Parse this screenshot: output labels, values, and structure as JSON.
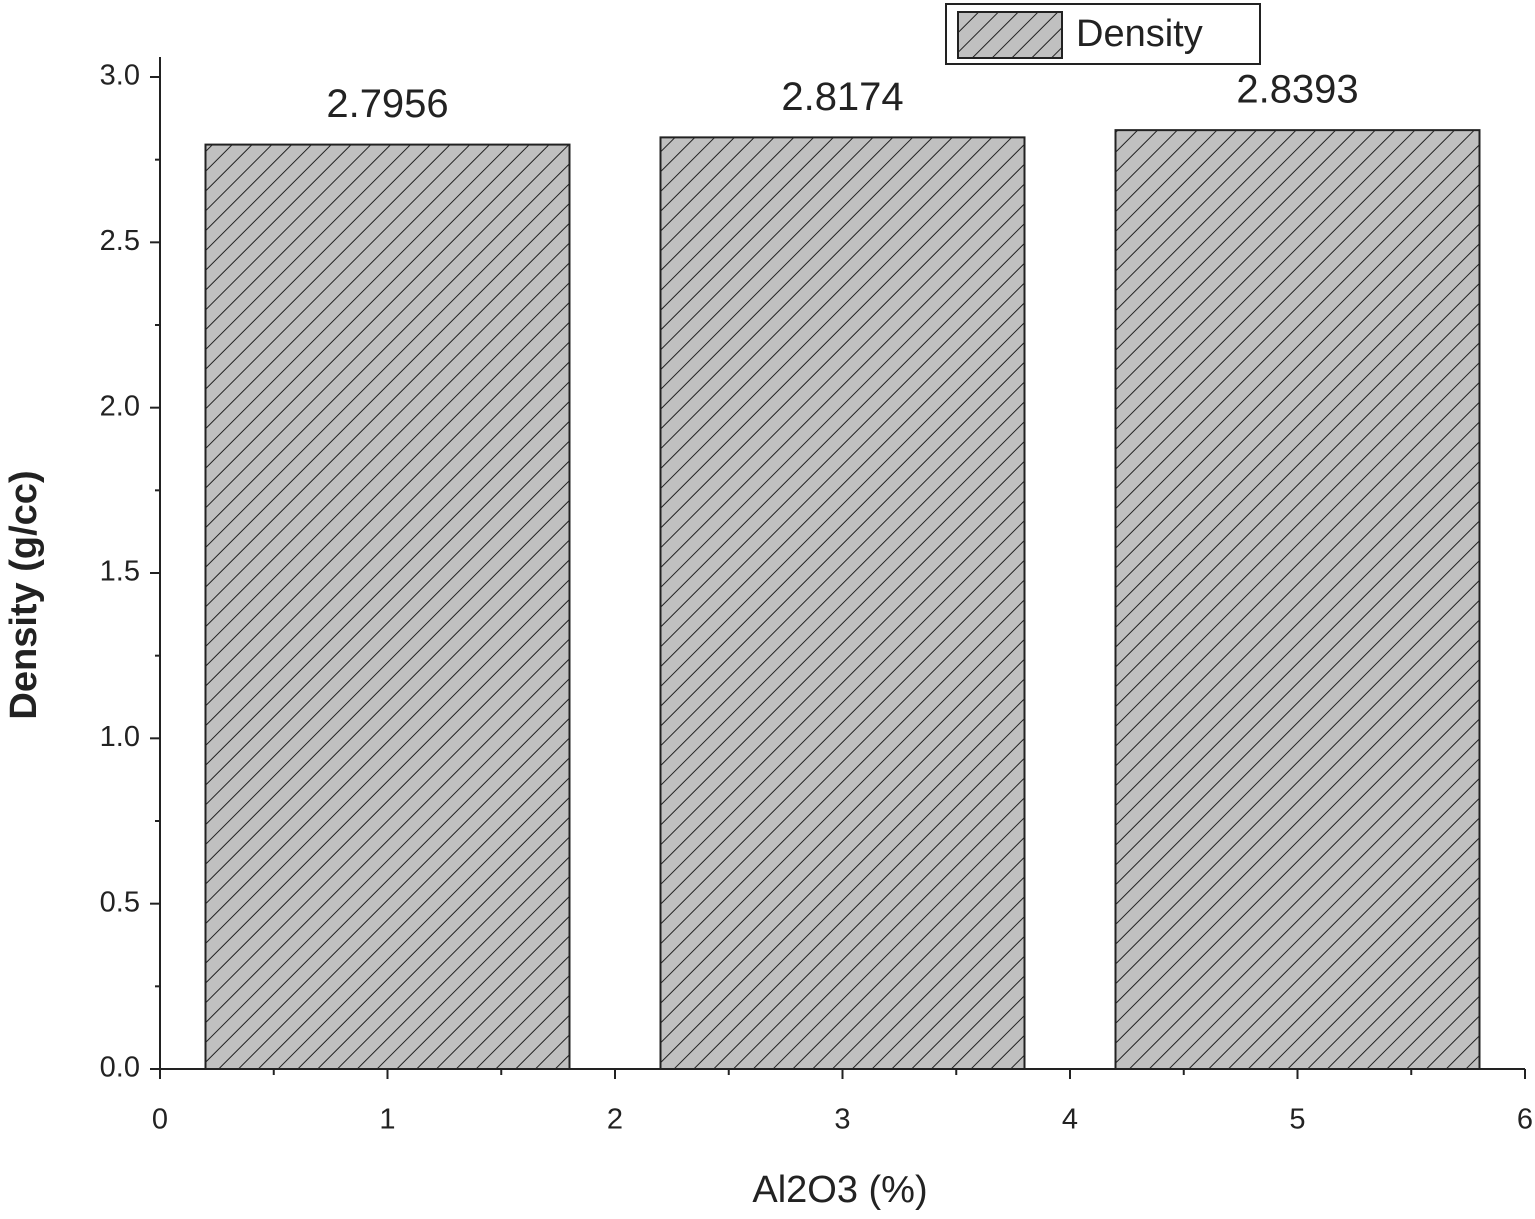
{
  "chart_data": {
    "type": "bar",
    "x": [
      1,
      3,
      5
    ],
    "series": [
      {
        "name": "Density",
        "color": "#c0c0c0",
        "values": [
          2.7956,
          2.8174,
          2.8393
        ]
      }
    ],
    "xlabel": "Al2O3 (%)",
    "ylabel": "Density (g/cc)",
    "xlim": [
      0,
      6
    ],
    "xticks": [
      0,
      1,
      2,
      3,
      4,
      5,
      6
    ],
    "ylim": [
      0,
      3
    ],
    "yticks": [
      {
        "value": 0,
        "label": "0.0"
      },
      0.5,
      {
        "value": 1,
        "label": "1.0"
      },
      1.5,
      {
        "value": 2,
        "label": "2.0"
      },
      2.5,
      {
        "value": 3,
        "label": "3.0"
      }
    ],
    "legend": "top-right",
    "data_labels": true
  }
}
